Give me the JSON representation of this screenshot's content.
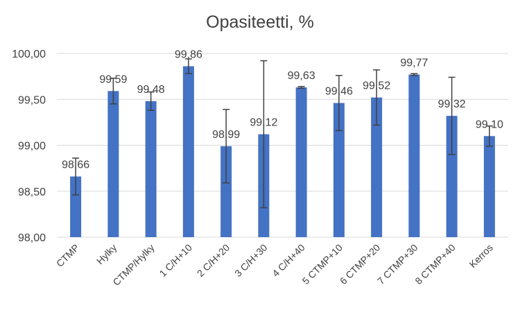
{
  "chart_data": {
    "type": "bar",
    "title": "Opasiteetti, %",
    "xlabel": "",
    "ylabel": "",
    "ylim": [
      98.0,
      100.0
    ],
    "yticks": [
      "98,00",
      "98,50",
      "99,00",
      "99,50",
      "100,00"
    ],
    "ytick_values": [
      98.0,
      98.5,
      99.0,
      99.5,
      100.0
    ],
    "grid": true,
    "legend": "none",
    "bar_color": "#4472C4",
    "categories": [
      "CTMP",
      "Hylky",
      "CTMP/Hylky",
      "1 C/H+10",
      "2 C/H+20",
      "3 C/H+30",
      "4 C/H+40",
      "5 CTMP+10",
      "6 CTMP+20",
      "7 CTMP+30",
      "8 CTMP+40",
      "Kerros"
    ],
    "values": [
      98.66,
      99.59,
      99.48,
      99.86,
      98.99,
      99.12,
      99.63,
      99.46,
      99.52,
      99.77,
      99.32,
      99.1
    ],
    "value_labels": [
      "98,66",
      "99,59",
      "99,48",
      "99,86",
      "98,99",
      "99,12",
      "99,63",
      "99,46",
      "99,52",
      "99,77",
      "99,32",
      "99,10"
    ],
    "error_low": [
      98.46,
      99.45,
      99.38,
      99.78,
      98.59,
      98.32,
      99.62,
      99.16,
      99.22,
      99.76,
      98.9,
      98.99
    ],
    "error_high": [
      98.86,
      99.73,
      99.58,
      99.94,
      99.39,
      99.92,
      99.64,
      99.76,
      99.82,
      99.78,
      99.74,
      99.21
    ]
  }
}
